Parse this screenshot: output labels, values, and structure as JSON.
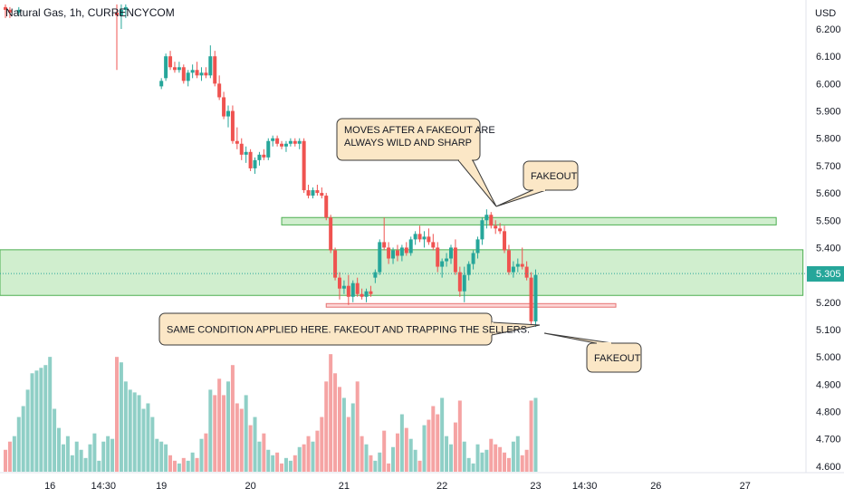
{
  "header": {
    "title": "Natural Gas, 1h, CURRENCYCOM",
    "currency": "USD",
    "current_price": "5.305"
  },
  "colors": {
    "up": "#26a69a",
    "down": "#ef5350",
    "vol_up": "#8fcfc6",
    "vol_down": "#f5a3a3",
    "zone_fill": "#c8ebc6",
    "zone_border": "#4caf50",
    "support_fill": "#fbd0d0",
    "support_border": "#e57373",
    "price_tag": "#26a69a",
    "note_fill": "#fbe7c6",
    "note_border": "#3a3a3a"
  },
  "annotations": [
    {
      "id": "note-wild",
      "lines": [
        "MOVES AFTER A FAKEOUT ARE",
        "ALWAYS WILD AND SHARP"
      ]
    },
    {
      "id": "note-fakeout-top",
      "lines": [
        "FAKEOUT"
      ]
    },
    {
      "id": "note-same",
      "lines": [
        "SAME CONDITION APPLIED HERE. FAKEOUT AND TRAPPING THE SELLERS."
      ]
    },
    {
      "id": "note-fakeout-bottom",
      "lines": [
        "FAKEOUT"
      ]
    }
  ],
  "chart_data": {
    "type": "candlestick",
    "title": "Natural Gas, 1h, CURRENCYCOM",
    "y_axis": {
      "unit": "USD",
      "range": [
        4.56,
        6.28
      ],
      "ticks": [
        6.2,
        6.1,
        6.0,
        5.9,
        5.8,
        5.7,
        5.6,
        5.5,
        5.4,
        5.3,
        5.2,
        5.1,
        5.0,
        4.9,
        4.8,
        4.7,
        4.6
      ],
      "tick_labels": [
        "6.200",
        "6.100",
        "6.000",
        "5.900",
        "5.800",
        "5.700",
        "5.600",
        "5.500",
        "5.400",
        "5.300",
        "5.200",
        "5.100",
        "5.000",
        "4.900",
        "4.800",
        "4.700",
        "4.600"
      ]
    },
    "x_axis": {
      "tick_labels": [
        "16",
        "14:30",
        "19",
        "20",
        "21",
        "22",
        "23",
        "14:30",
        "26",
        "27"
      ],
      "tick_bars": [
        10,
        22,
        35,
        55,
        76,
        98,
        119,
        130,
        146,
        166
      ]
    },
    "zones": [
      {
        "name": "resistance",
        "low": 5.483,
        "high": 5.51,
        "from_bar": 62,
        "to_bar": 173
      },
      {
        "name": "range",
        "low": 5.225,
        "high": 5.392,
        "from_bar": -2,
        "to_bar": 179
      },
      {
        "name": "support",
        "low": 5.182,
        "high": 5.195,
        "from_bar": 72,
        "to_bar": 137
      }
    ],
    "last_price": 5.305,
    "candles": [
      [
        0,
        6.28,
        6.29,
        6.24,
        6.27
      ],
      [
        1,
        6.27,
        6.28,
        6.24,
        6.26
      ],
      [
        3,
        6.26,
        6.28,
        6.25,
        6.27
      ],
      [
        25,
        6.26,
        6.29,
        6.05,
        6.25
      ],
      [
        26,
        6.25,
        6.29,
        6.2,
        6.27
      ],
      [
        27,
        6.27,
        6.29,
        6.24,
        6.28
      ],
      [
        35,
        5.99,
        6.02,
        5.98,
        6.01
      ],
      [
        36,
        6.02,
        6.11,
        6.01,
        6.1
      ],
      [
        37,
        6.1,
        6.12,
        6.05,
        6.06
      ],
      [
        38,
        6.06,
        6.08,
        6.04,
        6.05
      ],
      [
        39,
        6.05,
        6.08,
        6.04,
        6.06
      ],
      [
        40,
        6.06,
        6.07,
        6.0,
        6.01
      ],
      [
        41,
        6.01,
        6.05,
        5.99,
        6.04
      ],
      [
        42,
        6.04,
        6.07,
        6.02,
        6.05
      ],
      [
        43,
        6.05,
        6.08,
        6.02,
        6.03
      ],
      [
        44,
        6.03,
        6.06,
        6.01,
        6.04
      ],
      [
        45,
        6.04,
        6.06,
        6.02,
        6.03
      ],
      [
        46,
        6.03,
        6.14,
        6.02,
        6.1
      ],
      [
        47,
        6.1,
        6.12,
        5.99,
        6.0
      ],
      [
        48,
        6.0,
        6.03,
        5.94,
        5.95
      ],
      [
        49,
        5.95,
        5.97,
        5.87,
        5.88
      ],
      [
        50,
        5.88,
        5.92,
        5.84,
        5.9
      ],
      [
        51,
        5.9,
        5.92,
        5.78,
        5.79
      ],
      [
        52,
        5.79,
        5.84,
        5.76,
        5.78
      ],
      [
        53,
        5.78,
        5.8,
        5.72,
        5.74
      ],
      [
        54,
        5.74,
        5.77,
        5.71,
        5.75
      ],
      [
        55,
        5.75,
        5.76,
        5.68,
        5.69
      ],
      [
        56,
        5.69,
        5.73,
        5.67,
        5.72
      ],
      [
        57,
        5.72,
        5.75,
        5.7,
        5.74
      ],
      [
        58,
        5.74,
        5.76,
        5.72,
        5.73
      ],
      [
        59,
        5.73,
        5.8,
        5.72,
        5.79
      ],
      [
        60,
        5.79,
        5.81,
        5.77,
        5.8
      ],
      [
        61,
        5.8,
        5.81,
        5.77,
        5.78
      ],
      [
        62,
        5.78,
        5.79,
        5.76,
        5.77
      ],
      [
        63,
        5.77,
        5.79,
        5.75,
        5.78
      ],
      [
        64,
        5.78,
        5.8,
        5.77,
        5.79
      ],
      [
        65,
        5.79,
        5.8,
        5.77,
        5.78
      ],
      [
        66,
        5.78,
        5.8,
        5.76,
        5.79
      ],
      [
        67,
        5.79,
        5.8,
        5.6,
        5.61
      ],
      [
        68,
        5.61,
        5.63,
        5.58,
        5.59
      ],
      [
        69,
        5.59,
        5.62,
        5.58,
        5.61
      ],
      [
        70,
        5.61,
        5.63,
        5.59,
        5.6
      ],
      [
        71,
        5.6,
        5.62,
        5.58,
        5.59
      ],
      [
        72,
        5.59,
        5.6,
        5.5,
        5.51
      ],
      [
        73,
        5.51,
        5.52,
        5.38,
        5.39
      ],
      [
        74,
        5.39,
        5.4,
        5.28,
        5.29
      ],
      [
        75,
        5.29,
        5.31,
        5.21,
        5.25
      ],
      [
        76,
        5.25,
        5.28,
        5.23,
        5.26
      ],
      [
        77,
        5.26,
        5.3,
        5.19,
        5.22
      ],
      [
        78,
        5.22,
        5.28,
        5.2,
        5.27
      ],
      [
        79,
        5.27,
        5.29,
        5.22,
        5.23
      ],
      [
        80,
        5.23,
        5.25,
        5.21,
        5.22
      ],
      [
        81,
        5.22,
        5.25,
        5.2,
        5.24
      ],
      [
        82,
        5.24,
        5.26,
        5.22,
        5.23
      ],
      [
        83,
        5.29,
        5.32,
        5.27,
        5.31
      ],
      [
        84,
        5.31,
        5.43,
        5.3,
        5.42
      ],
      [
        85,
        5.42,
        5.51,
        5.39,
        5.4
      ],
      [
        86,
        5.4,
        5.42,
        5.34,
        5.36
      ],
      [
        87,
        5.36,
        5.4,
        5.34,
        5.39
      ],
      [
        88,
        5.39,
        5.41,
        5.35,
        5.37
      ],
      [
        89,
        5.37,
        5.41,
        5.35,
        5.4
      ],
      [
        90,
        5.4,
        5.42,
        5.37,
        5.38
      ],
      [
        91,
        5.38,
        5.44,
        5.37,
        5.43
      ],
      [
        92,
        5.43,
        5.46,
        5.41,
        5.45
      ],
      [
        93,
        5.45,
        5.48,
        5.42,
        5.43
      ],
      [
        94,
        5.43,
        5.46,
        5.4,
        5.44
      ],
      [
        95,
        5.44,
        5.47,
        5.41,
        5.42
      ],
      [
        96,
        5.42,
        5.45,
        5.39,
        5.4
      ],
      [
        97,
        5.4,
        5.42,
        5.31,
        5.33
      ],
      [
        98,
        5.33,
        5.36,
        5.29,
        5.35
      ],
      [
        99,
        5.35,
        5.38,
        5.33,
        5.36
      ],
      [
        100,
        5.36,
        5.41,
        5.34,
        5.4
      ],
      [
        101,
        5.4,
        5.43,
        5.3,
        5.31
      ],
      [
        102,
        5.31,
        5.33,
        5.22,
        5.24
      ],
      [
        103,
        5.24,
        5.33,
        5.2,
        5.3
      ],
      [
        104,
        5.3,
        5.35,
        5.28,
        5.34
      ],
      [
        105,
        5.34,
        5.39,
        5.32,
        5.38
      ],
      [
        106,
        5.38,
        5.44,
        5.36,
        5.43
      ],
      [
        107,
        5.43,
        5.51,
        5.41,
        5.5
      ],
      [
        108,
        5.5,
        5.54,
        5.47,
        5.52
      ],
      [
        109,
        5.52,
        5.53,
        5.47,
        5.48
      ],
      [
        110,
        5.48,
        5.5,
        5.45,
        5.47
      ],
      [
        111,
        5.47,
        5.49,
        5.45,
        5.46
      ],
      [
        112,
        5.46,
        5.48,
        5.38,
        5.39
      ],
      [
        113,
        5.39,
        5.41,
        5.3,
        5.31
      ],
      [
        114,
        5.31,
        5.35,
        5.29,
        5.33
      ],
      [
        115,
        5.33,
        5.36,
        5.31,
        5.34
      ],
      [
        116,
        5.34,
        5.4,
        5.32,
        5.33
      ],
      [
        117,
        5.33,
        5.35,
        5.28,
        5.29
      ],
      [
        118,
        5.29,
        5.31,
        5.12,
        5.13
      ],
      [
        119,
        5.13,
        5.32,
        5.11,
        5.3
      ]
    ],
    "volumes": [
      [
        0,
        4.66
      ],
      [
        1,
        4.69
      ],
      [
        2,
        4.71
      ],
      [
        3,
        4.78
      ],
      [
        4,
        4.82
      ],
      [
        5,
        4.88
      ],
      [
        6,
        4.94
      ],
      [
        7,
        4.95
      ],
      [
        8,
        4.96
      ],
      [
        9,
        4.97
      ],
      [
        10,
        5.0
      ],
      [
        11,
        4.81
      ],
      [
        12,
        4.74
      ],
      [
        13,
        4.68
      ],
      [
        14,
        4.71
      ],
      [
        15,
        4.64
      ],
      [
        16,
        4.69
      ],
      [
        17,
        4.66
      ],
      [
        18,
        4.63
      ],
      [
        19,
        4.68
      ],
      [
        20,
        4.72
      ],
      [
        21,
        4.62
      ],
      [
        22,
        4.69
      ],
      [
        23,
        4.71
      ],
      [
        24,
        4.7
      ],
      [
        25,
        5.0
      ],
      [
        26,
        4.98
      ],
      [
        27,
        4.91
      ],
      [
        28,
        4.88
      ],
      [
        29,
        4.87
      ],
      [
        30,
        4.86
      ],
      [
        31,
        4.81
      ],
      [
        32,
        4.83
      ],
      [
        33,
        4.78
      ],
      [
        34,
        4.7
      ],
      [
        35,
        4.69
      ],
      [
        36,
        4.68
      ],
      [
        37,
        4.64
      ],
      [
        38,
        4.62
      ],
      [
        39,
        4.61
      ],
      [
        40,
        4.63
      ],
      [
        41,
        4.62
      ],
      [
        42,
        4.65
      ],
      [
        43,
        4.63
      ],
      [
        44,
        4.7
      ],
      [
        45,
        4.72
      ],
      [
        46,
        4.88
      ],
      [
        47,
        4.86
      ],
      [
        48,
        4.92
      ],
      [
        49,
        4.86
      ],
      [
        50,
        4.91
      ],
      [
        51,
        4.97
      ],
      [
        52,
        4.83
      ],
      [
        53,
        4.81
      ],
      [
        54,
        4.86
      ],
      [
        55,
        4.75
      ],
      [
        56,
        4.78
      ],
      [
        57,
        4.69
      ],
      [
        58,
        4.72
      ],
      [
        59,
        4.66
      ],
      [
        60,
        4.64
      ],
      [
        61,
        4.65
      ],
      [
        62,
        4.61
      ],
      [
        63,
        4.63
      ],
      [
        64,
        4.62
      ],
      [
        65,
        4.64
      ],
      [
        66,
        4.67
      ],
      [
        67,
        4.68
      ],
      [
        68,
        4.71
      ],
      [
        69,
        4.69
      ],
      [
        70,
        4.73
      ],
      [
        71,
        4.78
      ],
      [
        72,
        4.91
      ],
      [
        73,
        5.01
      ],
      [
        74,
        4.94
      ],
      [
        75,
        4.89
      ],
      [
        76,
        4.85
      ],
      [
        77,
        4.78
      ],
      [
        78,
        4.83
      ],
      [
        79,
        4.91
      ],
      [
        80,
        4.71
      ],
      [
        81,
        4.68
      ],
      [
        82,
        4.64
      ],
      [
        83,
        4.62
      ],
      [
        84,
        4.65
      ],
      [
        85,
        4.73
      ],
      [
        86,
        4.61
      ],
      [
        87,
        4.67
      ],
      [
        88,
        4.72
      ],
      [
        89,
        4.79
      ],
      [
        90,
        4.74
      ],
      [
        91,
        4.7
      ],
      [
        92,
        4.66
      ],
      [
        93,
        4.62
      ],
      [
        94,
        4.75
      ],
      [
        95,
        4.77
      ],
      [
        96,
        4.82
      ],
      [
        97,
        4.79
      ],
      [
        98,
        4.85
      ],
      [
        99,
        4.71
      ],
      [
        100,
        4.68
      ],
      [
        101,
        4.76
      ],
      [
        102,
        4.84
      ],
      [
        103,
        4.69
      ],
      [
        104,
        4.63
      ],
      [
        105,
        4.61
      ],
      [
        106,
        4.68
      ],
      [
        107,
        4.65
      ],
      [
        108,
        4.66
      ],
      [
        109,
        4.7
      ],
      [
        110,
        4.68
      ],
      [
        111,
        4.67
      ],
      [
        112,
        4.65
      ],
      [
        113,
        4.63
      ],
      [
        114,
        4.69
      ],
      [
        115,
        4.71
      ],
      [
        116,
        4.64
      ],
      [
        117,
        4.66
      ],
      [
        118,
        4.84
      ],
      [
        119,
        4.85
      ]
    ]
  }
}
